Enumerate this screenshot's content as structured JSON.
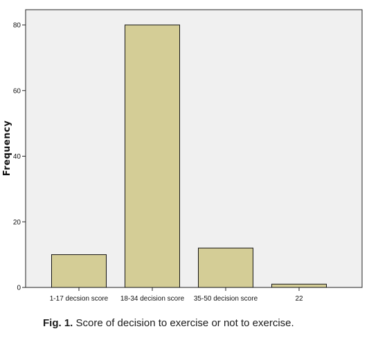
{
  "chart_data": {
    "type": "bar",
    "categories": [
      "1-17 decsion score",
      "18-34 decision score",
      "35-50 decision score",
      "22"
    ],
    "values": [
      10,
      80,
      12,
      1
    ],
    "xlabel": "",
    "ylabel": "Frequency",
    "ylim": [
      0,
      80
    ],
    "yticks": [
      "0",
      "20",
      "40",
      "60",
      "80"
    ],
    "grid": false,
    "bar_color": "#d4cd96",
    "plot_background": "#f0f0f0"
  },
  "caption": {
    "label": "Fig. 1.",
    "text": " Score of decision to exercise or not to exercise."
  }
}
